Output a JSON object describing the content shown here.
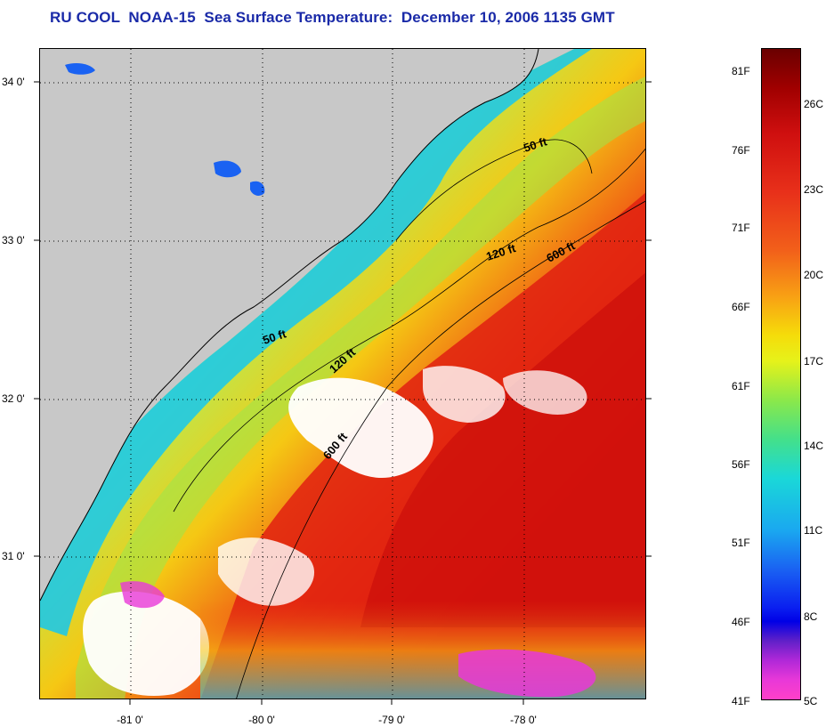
{
  "title": "RU COOL  NOAA-15  Sea Surface Temperature:  December 10, 2006 1135 GMT",
  "map": {
    "latitude_labels": [
      "34 0'",
      "33 0'",
      "32 0'",
      "31 0'"
    ],
    "longitude_labels": [
      "-81 0'",
      "-80 0'",
      "-79 0'",
      "-78 0'"
    ],
    "isobath_labels": [
      "50 ft",
      "120 ft",
      "600 ft",
      "50 ft",
      "120 ft",
      "600 ft"
    ],
    "colors": {
      "land": "#c8c8c8",
      "cloud": "#ffffff",
      "warm": "#d80c0c",
      "cool": "#1ad8f0"
    }
  },
  "colorbar": {
    "fahrenheit_labels": [
      "81F",
      "76F",
      "71F",
      "66F",
      "61F",
      "56F",
      "51F",
      "46F",
      "41F"
    ],
    "celsius_labels": [
      "26C",
      "23C",
      "20C",
      "17C",
      "14C",
      "11C",
      "8C",
      "5C"
    ]
  }
}
